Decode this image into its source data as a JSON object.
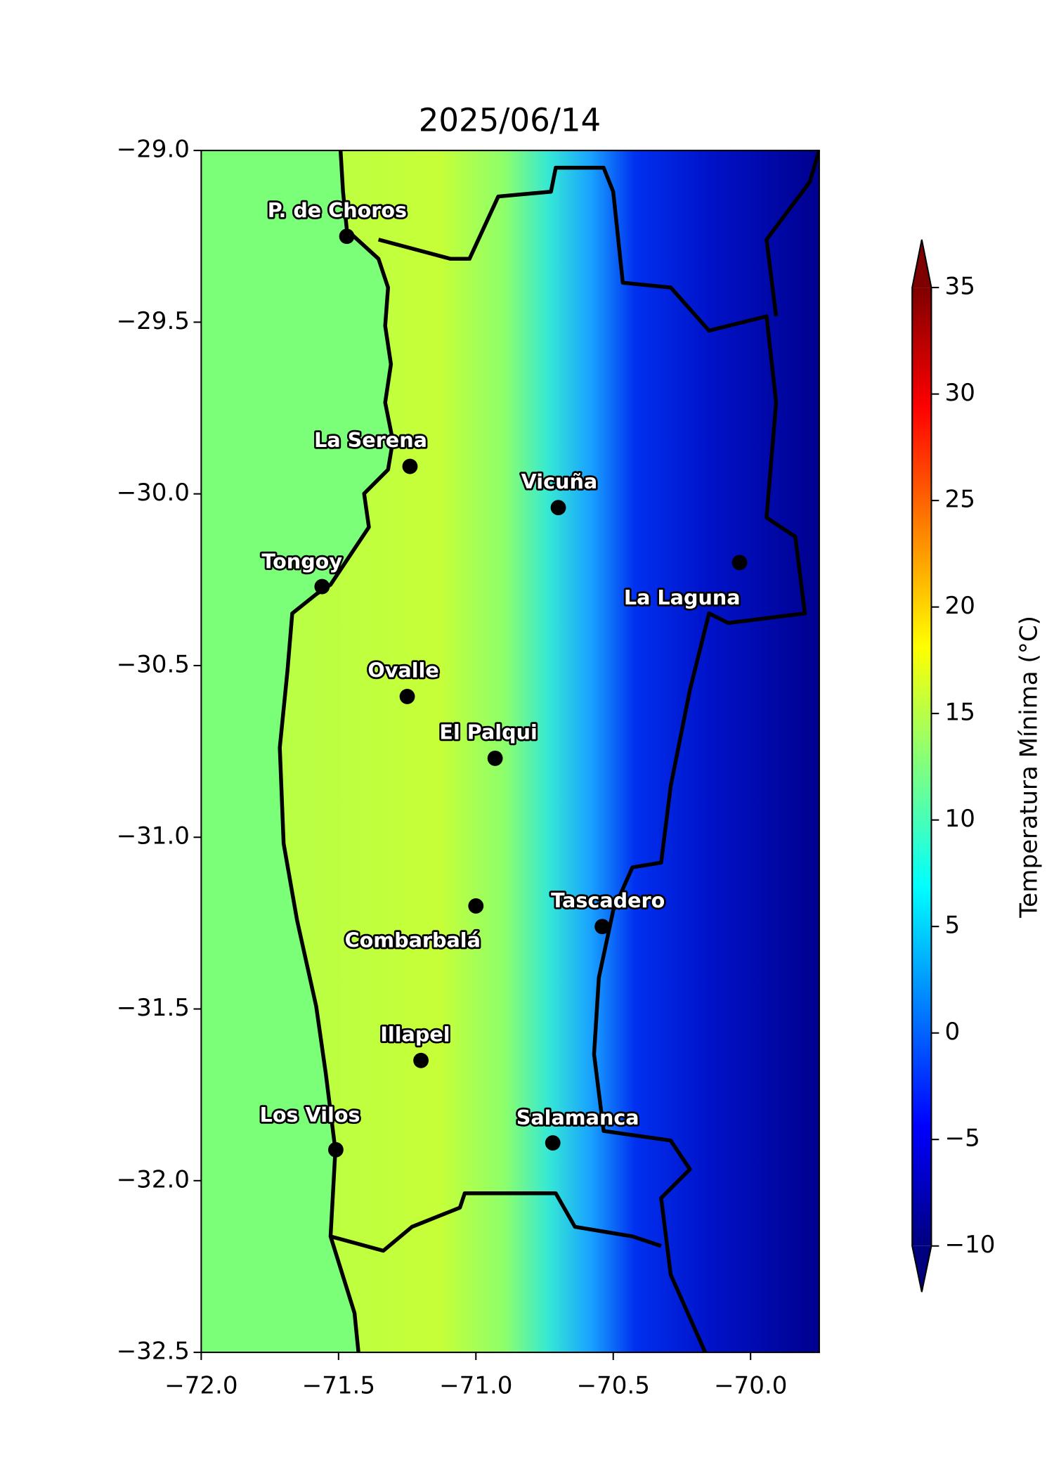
{
  "title": "2025/06/14",
  "map": {
    "xlim": [
      -72,
      -69.75
    ],
    "ylim": [
      -32.5,
      -29
    ],
    "xticks": [
      {
        "value": -72,
        "label": "−72.0"
      },
      {
        "value": -71.5,
        "label": "−71.5"
      },
      {
        "value": -71,
        "label": "−71.0"
      },
      {
        "value": -70.5,
        "label": "−70.5"
      },
      {
        "value": -70,
        "label": "−70.0"
      }
    ],
    "yticks": [
      {
        "value": -29,
        "label": "−29.0"
      },
      {
        "value": -29.5,
        "label": "−29.5"
      },
      {
        "value": -30,
        "label": "−30.0"
      },
      {
        "value": -30.5,
        "label": "−30.5"
      },
      {
        "value": -31,
        "label": "−31.0"
      },
      {
        "value": -31.5,
        "label": "−31.5"
      },
      {
        "value": -32,
        "label": "−32.0"
      },
      {
        "value": -32.5,
        "label": "−32.5"
      }
    ],
    "cities": [
      {
        "name": "P. de Choros",
        "lon": -71.47,
        "lat": -29.25
      },
      {
        "name": "La Serena",
        "lon": -71.24,
        "lat": -29.92
      },
      {
        "name": "Vicuña",
        "lon": -70.7,
        "lat": -30.04
      },
      {
        "name": "La Laguna",
        "lon": -70.04,
        "lat": -30.2
      },
      {
        "name": "Tongoy",
        "lon": -71.56,
        "lat": -30.27
      },
      {
        "name": "Ovalle",
        "lon": -71.25,
        "lat": -30.59
      },
      {
        "name": "El Palqui",
        "lon": -70.93,
        "lat": -30.77
      },
      {
        "name": "Combarbalá",
        "lon": -71.0,
        "lat": -31.2
      },
      {
        "name": "Tascadero",
        "lon": -70.54,
        "lat": -31.26
      },
      {
        "name": "Illapel",
        "lon": -71.2,
        "lat": -31.65
      },
      {
        "name": "Los Vilos",
        "lon": -71.51,
        "lat": -31.91
      },
      {
        "name": "Salamanca",
        "lon": -70.72,
        "lat": -31.89
      }
    ]
  },
  "colorbar": {
    "label": "Temperatura Mínima (°C)",
    "colormap": "jet",
    "lim": [
      -10,
      35
    ],
    "ticks": [
      35,
      30,
      25,
      20,
      15,
      10,
      5,
      0,
      {
        "value": -5,
        "label": "−5"
      },
      {
        "value": -10,
        "label": "−10"
      }
    ]
  }
}
